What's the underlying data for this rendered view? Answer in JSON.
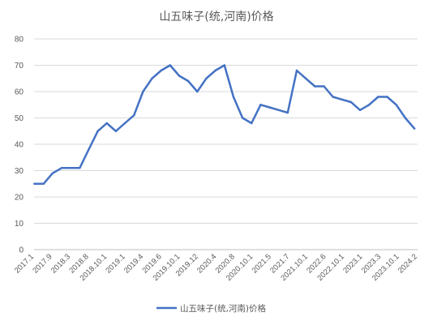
{
  "chart_data": {
    "type": "line",
    "title": "山五味子(统,河南)价格",
    "xlabel": "",
    "ylabel": "",
    "ylim": [
      0,
      80
    ],
    "yticks": [
      0,
      10,
      20,
      30,
      40,
      50,
      60,
      70,
      80
    ],
    "grid": true,
    "legend_position": "bottom",
    "line_color": "#4472C4",
    "x_tick_labels": [
      "2017.1",
      "2017.9",
      "2018.3",
      "2018.8",
      "2018.10.1",
      "2019.1",
      "2019.4",
      "2019.6",
      "2019.10.1",
      "2019.12",
      "2020.4",
      "2020.8",
      "2020.10.1",
      "2021.5",
      "2021.7",
      "2021.10.1",
      "2022.6",
      "2022.10.1",
      "2023.1",
      "2023.3",
      "2023.10.1",
      "2024.2"
    ],
    "series": [
      {
        "name": "山五味子(统,河南)价格",
        "values": [
          25,
          25,
          29,
          31,
          31,
          31,
          38,
          45,
          48,
          45,
          48,
          51,
          60,
          65,
          68,
          70,
          66,
          64,
          60,
          65,
          68,
          70,
          58,
          50,
          48,
          55,
          54,
          53,
          52,
          68,
          65,
          62,
          62,
          58,
          57,
          56,
          53,
          55,
          58,
          58,
          55,
          50,
          46
        ]
      }
    ]
  }
}
